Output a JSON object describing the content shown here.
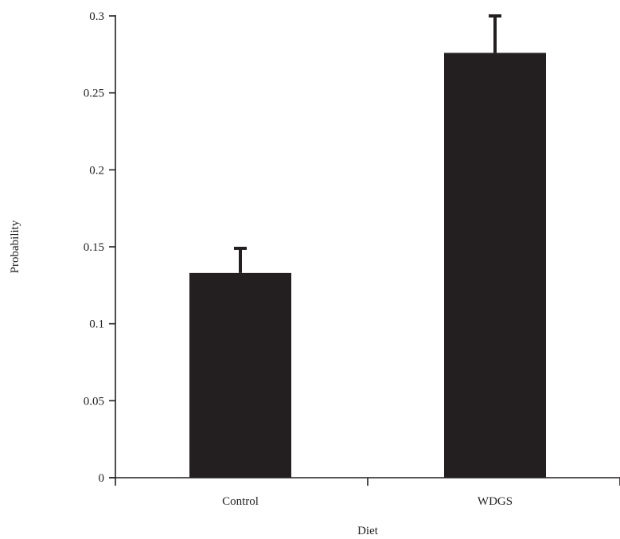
{
  "chart_data": {
    "type": "bar",
    "title": "",
    "xlabel": "Diet",
    "ylabel": "Probability",
    "categories": [
      "Control",
      "WDGS"
    ],
    "values": [
      0.133,
      0.276
    ],
    "error_upper": [
      0.149,
      0.3
    ],
    "ylim": [
      0,
      0.3
    ],
    "yticks": [
      0,
      0.05,
      0.1,
      0.15,
      0.2,
      0.25,
      0.3
    ],
    "ytick_labels": [
      "0",
      "0.05",
      "0.1",
      "0.15",
      "0.2",
      "0.25",
      "0.3"
    ],
    "grid": false,
    "legend": "none",
    "bar_color": "#231f20",
    "axis_color": "#231f20"
  }
}
